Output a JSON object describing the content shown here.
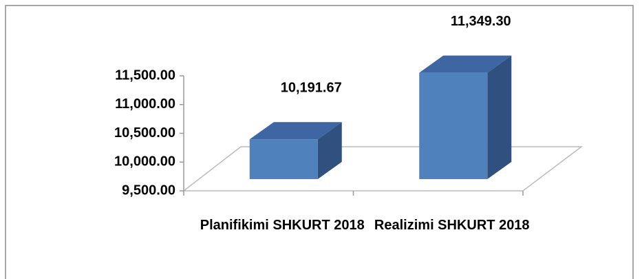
{
  "chart_data": {
    "type": "bar3d",
    "categories": [
      "Planifikimi SHKURT 2018",
      "Realizimi SHKURT 2018"
    ],
    "values": [
      10191.67,
      11349.3
    ],
    "value_labels": [
      "10,191.67",
      "11,349.30"
    ],
    "color": "#4f81bd",
    "ylim": [
      9500,
      11500
    ],
    "yticks": [
      {
        "value": 9500,
        "label": "9,500.00"
      },
      {
        "value": 10000,
        "label": "10,000.00"
      },
      {
        "value": 10500,
        "label": "10,500.00"
      },
      {
        "value": 11000,
        "label": "11,000.00"
      },
      {
        "value": 11500,
        "label": "11,500.00"
      }
    ]
  }
}
